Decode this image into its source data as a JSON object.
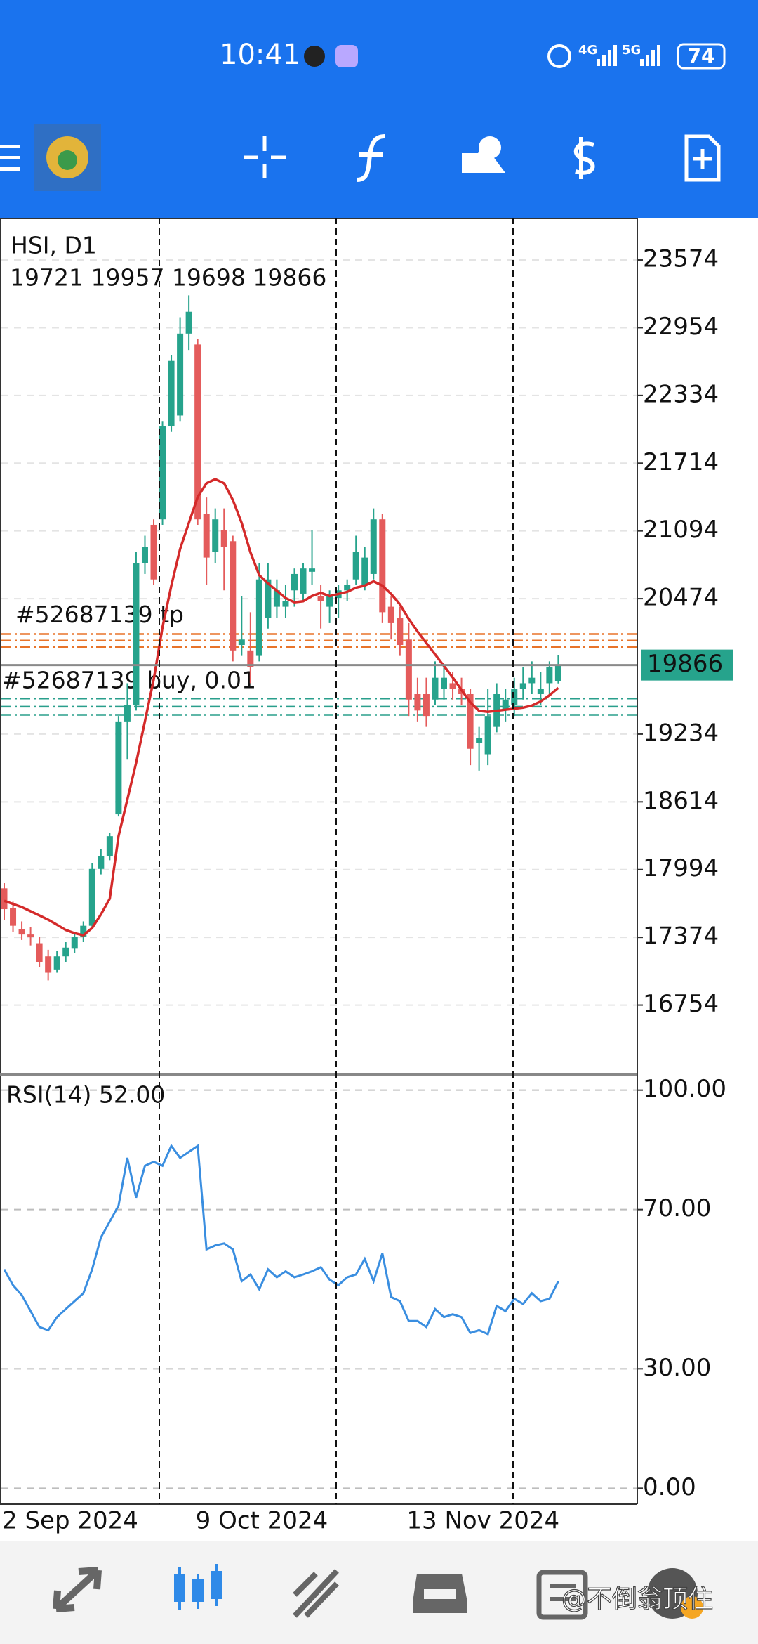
{
  "status_bar": {
    "time": "10:41",
    "network": [
      "4G",
      "5G"
    ],
    "battery": 74
  },
  "chart_data": {
    "type": "candlestick",
    "title": "HSI, D1",
    "ohlc_text": "19721 19957 19698 19866",
    "up_color": "#26a38c",
    "down_color": "#e45b5b",
    "ylim": [
      16121,
      23960
    ],
    "yticks": [
      23574,
      22954,
      22334,
      21714,
      21094,
      20474,
      19234,
      18614,
      17994,
      17374,
      16754
    ],
    "grid": true,
    "current_price": 19866,
    "current_price_color": "#26a38c",
    "categories": [
      "2 Sep 2024",
      null,
      null,
      null,
      null,
      null,
      null,
      null,
      null,
      null,
      null,
      null,
      null,
      null,
      null,
      null,
      null,
      null,
      null,
      null,
      null,
      null,
      "9 Oct 2024",
      null,
      null,
      null,
      null,
      null,
      null,
      null,
      null,
      null,
      null,
      null,
      null,
      null,
      null,
      null,
      null,
      null,
      null,
      null,
      null,
      null,
      null,
      null,
      "13 Nov 2024",
      null,
      null,
      null,
      null,
      null,
      null,
      null,
      null,
      null,
      null,
      null,
      null,
      null,
      null,
      null,
      null,
      null
    ],
    "candles": [
      [
        17823,
        17870,
        17535,
        17632
      ],
      [
        17640,
        17700,
        17420,
        17480
      ],
      [
        17450,
        17520,
        17350,
        17400
      ],
      [
        17400,
        17470,
        17300,
        17380
      ],
      [
        17320,
        17380,
        17100,
        17150
      ],
      [
        17200,
        17260,
        16980,
        17050
      ],
      [
        17080,
        17250,
        17050,
        17200
      ],
      [
        17200,
        17330,
        17150,
        17280
      ],
      [
        17270,
        17420,
        17230,
        17380
      ],
      [
        17380,
        17520,
        17330,
        17480
      ],
      [
        17480,
        18050,
        17450,
        18000
      ],
      [
        18000,
        18180,
        17950,
        18120
      ],
      [
        18120,
        18330,
        18080,
        18300
      ],
      [
        18500,
        19400,
        18480,
        19350
      ],
      [
        19350,
        19700,
        19000,
        19500
      ],
      [
        19500,
        20900,
        19450,
        20800
      ],
      [
        20800,
        21050,
        20700,
        20950
      ],
      [
        21150,
        21200,
        20600,
        20650
      ],
      [
        21200,
        22100,
        21150,
        22050
      ],
      [
        22050,
        22700,
        22000,
        22650
      ],
      [
        22150,
        23050,
        22100,
        22900
      ],
      [
        22900,
        23250,
        22750,
        23100
      ],
      [
        22800,
        22850,
        21150,
        21200
      ],
      [
        21250,
        21400,
        20600,
        20850
      ],
      [
        20900,
        21300,
        20800,
        21200
      ],
      [
        21100,
        21300,
        20550,
        20950
      ],
      [
        21000,
        21050,
        19900,
        20000
      ],
      [
        20050,
        20500,
        19950,
        20100
      ],
      [
        20000,
        20350,
        19700,
        19850
      ],
      [
        19950,
        20800,
        19900,
        20650
      ],
      [
        20300,
        20800,
        20200,
        20650
      ],
      [
        20400,
        20650,
        20300,
        20550
      ],
      [
        20400,
        20600,
        20300,
        20450
      ],
      [
        20550,
        20750,
        20400,
        20700
      ],
      [
        20520,
        20800,
        20450,
        20750
      ],
      [
        20720,
        21100,
        20600,
        20750
      ],
      [
        20500,
        20600,
        20200,
        20450
      ],
      [
        20400,
        20550,
        20250,
        20500
      ],
      [
        20480,
        20600,
        20300,
        20550
      ],
      [
        20550,
        20650,
        20450,
        20600
      ],
      [
        20650,
        21050,
        20600,
        20900
      ],
      [
        20600,
        20950,
        20550,
        20850
      ],
      [
        20700,
        21300,
        20650,
        21200
      ],
      [
        21200,
        21250,
        20250,
        20350
      ],
      [
        20400,
        20500,
        20100,
        20250
      ],
      [
        20300,
        20400,
        19950,
        20050
      ],
      [
        20100,
        20250,
        19400,
        19550
      ],
      [
        19600,
        19750,
        19350,
        19450
      ],
      [
        19600,
        19750,
        19300,
        19400
      ],
      [
        19550,
        19900,
        19500,
        19750
      ],
      [
        19650,
        19850,
        19550,
        19750
      ],
      [
        19700,
        19800,
        19550,
        19650
      ],
      [
        19650,
        19750,
        19500,
        19600
      ],
      [
        19600,
        19650,
        18950,
        19100
      ],
      [
        19150,
        19300,
        18900,
        19200
      ],
      [
        19050,
        19650,
        18950,
        19400
      ],
      [
        19300,
        19700,
        19250,
        19600
      ],
      [
        19450,
        19650,
        19350,
        19550
      ],
      [
        19500,
        19750,
        19400,
        19650
      ],
      [
        19650,
        19850,
        19550,
        19700
      ],
      [
        19700,
        19900,
        19600,
        19750
      ],
      [
        19600,
        19800,
        19500,
        19650
      ],
      [
        19700,
        19900,
        19600,
        19850
      ],
      [
        19721,
        19957,
        19698,
        19866
      ]
    ],
    "ma": {
      "color": "#d42a2a",
      "values": [
        17708,
        17680,
        17651,
        17613,
        17575,
        17536,
        17489,
        17441,
        17412,
        17393,
        17460,
        17584,
        17728,
        18301,
        18635,
        18970,
        19352,
        19734,
        20211,
        20593,
        20928,
        21167,
        21405,
        21530,
        21568,
        21530,
        21377,
        21167,
        20899,
        20689,
        20613,
        20546,
        20479,
        20441,
        20450,
        20498,
        20527,
        20498,
        20517,
        20536,
        20574,
        20593,
        20632,
        20593,
        20517,
        20421,
        20288,
        20173,
        20068,
        19963,
        19858,
        19753,
        19638,
        19524,
        19447,
        19437,
        19447,
        19457,
        19466,
        19476,
        19495,
        19533,
        19590,
        19657
      ]
    },
    "orders": [
      {
        "label": "#52687139 tp",
        "color": "#e8742a",
        "levels": [
          20150,
          20090,
          20030
        ]
      },
      {
        "label": "#52687139 buy, 0.01",
        "color": "#2a9f8c",
        "levels": [
          19560,
          19485,
          19410
        ]
      }
    ],
    "indicator": {
      "type": "line",
      "title": "RSI(14) 52.00",
      "color": "#3a8ee0",
      "ylim": [
        -4,
        104
      ],
      "yticks": [
        {
          "value": 100,
          "label": "100.00"
        },
        {
          "value": 70,
          "label": "70.00"
        },
        {
          "value": 30,
          "label": "30.00"
        },
        {
          "value": 0,
          "label": "0.00"
        }
      ],
      "values": [
        55,
        51,
        48.5,
        44.5,
        40.5,
        39.7,
        43,
        45,
        47,
        49,
        55,
        63,
        67,
        71,
        83,
        73,
        81,
        82,
        81,
        86,
        83,
        84.5,
        86,
        60,
        61,
        61.5,
        60,
        52,
        53.7,
        50,
        55,
        53,
        54.5,
        53,
        53.7,
        54.5,
        55.5,
        52.4,
        51,
        53,
        53.7,
        57.6,
        52,
        59,
        48,
        47,
        42,
        42,
        40.5,
        45,
        43,
        43.7,
        43,
        39,
        39.7,
        38.7,
        45.8,
        44.5,
        47.6,
        46.3,
        49,
        47,
        47.6,
        52
      ]
    }
  },
  "watermark": "@不倒翁顶住"
}
